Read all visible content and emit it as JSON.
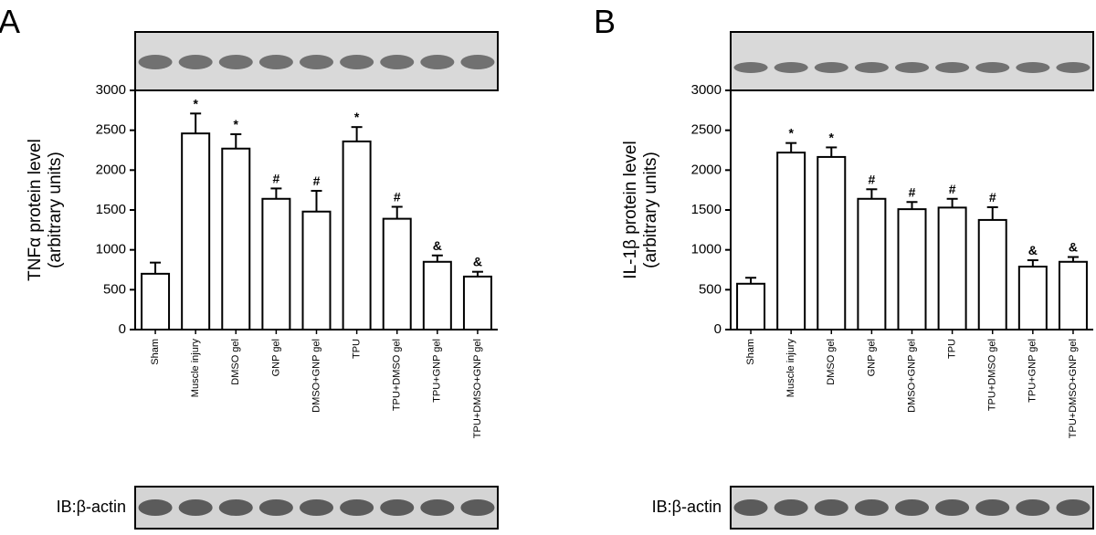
{
  "chart_data": [
    {
      "type": "bar",
      "panel": "A",
      "ylabel": [
        "TNFα protein level",
        "(arbitrary units)"
      ],
      "blot_label": "IB:β-actin",
      "categories": [
        "Sham",
        "Muscle injury",
        "DMSO gel",
        "GNP gel",
        "DMSO+GNP gel",
        "TPU",
        "TPU+DMSO gel",
        "TPU+GNP gel",
        "TPU+DMSO+GNP gel"
      ],
      "values": [
        700,
        2460,
        2270,
        1640,
        1480,
        2360,
        1390,
        850,
        665
      ],
      "errors": [
        140,
        250,
        180,
        130,
        260,
        180,
        150,
        80,
        60
      ],
      "annotations": [
        null,
        "*",
        "*",
        "#",
        "#",
        "*",
        "#",
        "&",
        "&"
      ],
      "ylim": [
        0,
        3000
      ],
      "yticks": [
        0,
        500,
        1000,
        1500,
        2000,
        2500,
        3000
      ],
      "color": "#ffffff"
    },
    {
      "type": "bar",
      "panel": "B",
      "ylabel": [
        "IL-1β protein level",
        "(arbitrary units)"
      ],
      "blot_label": "IB:β-actin",
      "categories": [
        "Sham",
        "Muscle injury",
        "DMSO gel",
        "GNP gel",
        "DMSO+GNP gel",
        "TPU",
        "TPU+DMSO gel",
        "TPU+GNP gel",
        "TPU+DMSO+GNP gel"
      ],
      "values": [
        575,
        2220,
        2165,
        1640,
        1510,
        1530,
        1375,
        790,
        850
      ],
      "errors": [
        75,
        120,
        120,
        120,
        90,
        110,
        160,
        80,
        60
      ],
      "annotations": [
        null,
        "*",
        "*",
        "#",
        "#",
        "#",
        "#",
        "&",
        "&"
      ],
      "ylim": [
        0,
        3000
      ],
      "yticks": [
        0,
        500,
        1000,
        1500,
        2000,
        2500,
        3000
      ],
      "color": "#ffffff"
    }
  ]
}
